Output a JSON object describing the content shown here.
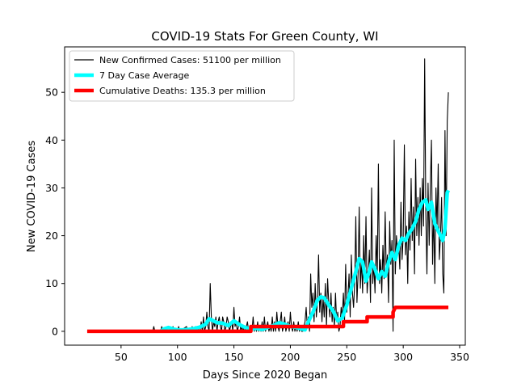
{
  "chart_data": {
    "type": "line",
    "title": "COVID-19 Stats For Green County, WI",
    "xlabel": "Days Since 2020 Began",
    "ylabel": "New COVID-19 Cases",
    "xlim": [
      0,
      355
    ],
    "ylim": [
      -2.9,
      59.5
    ],
    "xticks": [
      50,
      100,
      150,
      200,
      250,
      300,
      350
    ],
    "yticks": [
      0,
      10,
      20,
      30,
      40,
      50
    ],
    "grid": false,
    "legend_position": "top-left",
    "series": [
      {
        "name": "New Confirmed Cases: 51100 per million",
        "color": "#000000",
        "points": [
          [
            20,
            0
          ],
          [
            40,
            0
          ],
          [
            60,
            0
          ],
          [
            78,
            0
          ],
          [
            79,
            1
          ],
          [
            80,
            0
          ],
          [
            85,
            0
          ],
          [
            86,
            1
          ],
          [
            87,
            0
          ],
          [
            95,
            0
          ],
          [
            96,
            1
          ],
          [
            97,
            0
          ],
          [
            100,
            0
          ],
          [
            101,
            1
          ],
          [
            102,
            0
          ],
          [
            108,
            1
          ],
          [
            109,
            0
          ],
          [
            112,
            0
          ],
          [
            113,
            1
          ],
          [
            114,
            0
          ],
          [
            116,
            1
          ],
          [
            117,
            0
          ],
          [
            118,
            1
          ],
          [
            119,
            0
          ],
          [
            120,
            0
          ],
          [
            121,
            2
          ],
          [
            122,
            0
          ],
          [
            123,
            3
          ],
          [
            124,
            0
          ],
          [
            125,
            1
          ],
          [
            126,
            4
          ],
          [
            127,
            1
          ],
          [
            128,
            0
          ],
          [
            129,
            10
          ],
          [
            130,
            3
          ],
          [
            131,
            0
          ],
          [
            132,
            2
          ],
          [
            133,
            1
          ],
          [
            134,
            3
          ],
          [
            135,
            0
          ],
          [
            136,
            2
          ],
          [
            137,
            3
          ],
          [
            138,
            1
          ],
          [
            139,
            0
          ],
          [
            140,
            3
          ],
          [
            141,
            2
          ],
          [
            142,
            0
          ],
          [
            143,
            1
          ],
          [
            144,
            3
          ],
          [
            145,
            2
          ],
          [
            146,
            0
          ],
          [
            147,
            1
          ],
          [
            148,
            2
          ],
          [
            149,
            0
          ],
          [
            150,
            5
          ],
          [
            151,
            1
          ],
          [
            152,
            2
          ],
          [
            153,
            0
          ],
          [
            154,
            1
          ],
          [
            155,
            3
          ],
          [
            156,
            0
          ],
          [
            157,
            1
          ],
          [
            158,
            0
          ],
          [
            159,
            1
          ],
          [
            160,
            0
          ],
          [
            161,
            1
          ],
          [
            162,
            2
          ],
          [
            163,
            0
          ],
          [
            164,
            1
          ],
          [
            165,
            0
          ],
          [
            166,
            0
          ],
          [
            167,
            3
          ],
          [
            168,
            0
          ],
          [
            169,
            1
          ],
          [
            170,
            0
          ],
          [
            171,
            2
          ],
          [
            172,
            0
          ],
          [
            173,
            1
          ],
          [
            174,
            0
          ],
          [
            175,
            2
          ],
          [
            176,
            0
          ],
          [
            177,
            3
          ],
          [
            178,
            0
          ],
          [
            179,
            1
          ],
          [
            180,
            2
          ],
          [
            181,
            0
          ],
          [
            182,
            1
          ],
          [
            183,
            0
          ],
          [
            184,
            3
          ],
          [
            185,
            0
          ],
          [
            186,
            2
          ],
          [
            187,
            0
          ],
          [
            188,
            4
          ],
          [
            189,
            1
          ],
          [
            190,
            0
          ],
          [
            191,
            2
          ],
          [
            192,
            4
          ],
          [
            193,
            0
          ],
          [
            194,
            1
          ],
          [
            195,
            3
          ],
          [
            196,
            0
          ],
          [
            197,
            1
          ],
          [
            198,
            2
          ],
          [
            199,
            0
          ],
          [
            200,
            4
          ],
          [
            201,
            1
          ],
          [
            202,
            0
          ],
          [
            203,
            2
          ],
          [
            204,
            0
          ],
          [
            205,
            1
          ],
          [
            206,
            0
          ],
          [
            207,
            2
          ],
          [
            208,
            0
          ],
          [
            209,
            1
          ],
          [
            210,
            0
          ],
          [
            211,
            0
          ],
          [
            212,
            1
          ],
          [
            213,
            2
          ],
          [
            214,
            5
          ],
          [
            215,
            1
          ],
          [
            216,
            3
          ],
          [
            217,
            0
          ],
          [
            218,
            12
          ],
          [
            219,
            5
          ],
          [
            220,
            8
          ],
          [
            221,
            2
          ],
          [
            222,
            10
          ],
          [
            223,
            3
          ],
          [
            224,
            6
          ],
          [
            225,
            16
          ],
          [
            226,
            4
          ],
          [
            227,
            8
          ],
          [
            228,
            2
          ],
          [
            229,
            7
          ],
          [
            230,
            3
          ],
          [
            231,
            10
          ],
          [
            232,
            1
          ],
          [
            233,
            11
          ],
          [
            234,
            6
          ],
          [
            235,
            3
          ],
          [
            236,
            8
          ],
          [
            237,
            2
          ],
          [
            238,
            5
          ],
          [
            239,
            1
          ],
          [
            240,
            8
          ],
          [
            241,
            2
          ],
          [
            242,
            4
          ],
          [
            243,
            0
          ],
          [
            244,
            1
          ],
          [
            245,
            5
          ],
          [
            246,
            3
          ],
          [
            247,
            8
          ],
          [
            248,
            2
          ],
          [
            249,
            14
          ],
          [
            250,
            4
          ],
          [
            251,
            7
          ],
          [
            252,
            12
          ],
          [
            253,
            3
          ],
          [
            254,
            16
          ],
          [
            255,
            8
          ],
          [
            256,
            5
          ],
          [
            257,
            10
          ],
          [
            258,
            24
          ],
          [
            259,
            6
          ],
          [
            260,
            12
          ],
          [
            261,
            26
          ],
          [
            262,
            9
          ],
          [
            263,
            15
          ],
          [
            264,
            8
          ],
          [
            265,
            20
          ],
          [
            266,
            10
          ],
          [
            267,
            24
          ],
          [
            268,
            8
          ],
          [
            269,
            12
          ],
          [
            270,
            17
          ],
          [
            271,
            6
          ],
          [
            272,
            30
          ],
          [
            273,
            10
          ],
          [
            274,
            14
          ],
          [
            275,
            8
          ],
          [
            276,
            20
          ],
          [
            277,
            12
          ],
          [
            278,
            35
          ],
          [
            279,
            10
          ],
          [
            280,
            15
          ],
          [
            281,
            8
          ],
          [
            282,
            18
          ],
          [
            283,
            11
          ],
          [
            284,
            25
          ],
          [
            285,
            12
          ],
          [
            286,
            16
          ],
          [
            287,
            6
          ],
          [
            288,
            23
          ],
          [
            289,
            14
          ],
          [
            290,
            19
          ],
          [
            291,
            0
          ],
          [
            292,
            40
          ],
          [
            293,
            12
          ],
          [
            294,
            20
          ],
          [
            295,
            16
          ],
          [
            296,
            18
          ],
          [
            297,
            13
          ],
          [
            298,
            27
          ],
          [
            299,
            15
          ],
          [
            300,
            20
          ],
          [
            301,
            39
          ],
          [
            302,
            16
          ],
          [
            303,
            22
          ],
          [
            304,
            10
          ],
          [
            305,
            25
          ],
          [
            306,
            17
          ],
          [
            307,
            32
          ],
          [
            308,
            19
          ],
          [
            309,
            26
          ],
          [
            310,
            12
          ],
          [
            311,
            36
          ],
          [
            312,
            20
          ],
          [
            313,
            28
          ],
          [
            314,
            18
          ],
          [
            315,
            30
          ],
          [
            316,
            20
          ],
          [
            317,
            32
          ],
          [
            318,
            22
          ],
          [
            319,
            57
          ],
          [
            320,
            25
          ],
          [
            321,
            12
          ],
          [
            322,
            31
          ],
          [
            323,
            18
          ],
          [
            324,
            30
          ],
          [
            325,
            40
          ],
          [
            326,
            14
          ],
          [
            327,
            25
          ],
          [
            328,
            10
          ],
          [
            329,
            30
          ],
          [
            330,
            22
          ],
          [
            331,
            35
          ],
          [
            332,
            15
          ],
          [
            333,
            20
          ],
          [
            334,
            28
          ],
          [
            335,
            12
          ],
          [
            336,
            8
          ],
          [
            337,
            42
          ],
          [
            338,
            20
          ],
          [
            339,
            44
          ],
          [
            340,
            50
          ]
        ]
      },
      {
        "name": "7 Day Case Average",
        "color": "#00ffff",
        "points": [
          [
            85,
            0
          ],
          [
            88,
            0.5
          ],
          [
            92,
            0.8
          ],
          [
            96,
            0.5
          ],
          [
            100,
            0.3
          ],
          [
            105,
            0.3
          ],
          [
            110,
            0.4
          ],
          [
            115,
            0.6
          ],
          [
            120,
            0.9
          ],
          [
            125,
            1.5
          ],
          [
            128,
            2.6
          ],
          [
            131,
            2.3
          ],
          [
            135,
            1.8
          ],
          [
            140,
            1.7
          ],
          [
            145,
            1.2
          ],
          [
            150,
            2.2
          ],
          [
            155,
            1.4
          ],
          [
            160,
            0.8
          ],
          [
            165,
            0.5
          ],
          [
            170,
            0.6
          ],
          [
            175,
            0.4
          ],
          [
            180,
            0.8
          ],
          [
            185,
            1.2
          ],
          [
            190,
            1.8
          ],
          [
            195,
            1.5
          ],
          [
            200,
            1.0
          ],
          [
            205,
            0.8
          ],
          [
            210,
            0.5
          ],
          [
            213,
            0.3
          ],
          [
            216,
            2.0
          ],
          [
            220,
            4.0
          ],
          [
            224,
            6.5
          ],
          [
            227,
            7.2
          ],
          [
            230,
            7.0
          ],
          [
            234,
            5.5
          ],
          [
            238,
            4.2
          ],
          [
            242,
            2.2
          ],
          [
            246,
            2.8
          ],
          [
            250,
            5.5
          ],
          [
            254,
            9.0
          ],
          [
            258,
            12.5
          ],
          [
            261,
            15.2
          ],
          [
            264,
            14.5
          ],
          [
            267,
            10.5
          ],
          [
            270,
            12.5
          ],
          [
            272,
            14.5
          ],
          [
            275,
            13.0
          ],
          [
            278,
            11.0
          ],
          [
            281,
            12.5
          ],
          [
            284,
            11.5
          ],
          [
            287,
            14.5
          ],
          [
            290,
            16.5
          ],
          [
            293,
            15.0
          ],
          [
            296,
            18.0
          ],
          [
            299,
            19.5
          ],
          [
            302,
            19.0
          ],
          [
            305,
            20.5
          ],
          [
            308,
            21.5
          ],
          [
            311,
            23.0
          ],
          [
            314,
            25.5
          ],
          [
            317,
            27.0
          ],
          [
            320,
            27.5
          ],
          [
            322,
            25.5
          ],
          [
            325,
            27.0
          ],
          [
            328,
            22.5
          ],
          [
            331,
            21.0
          ],
          [
            333,
            20.0
          ],
          [
            335,
            19.0
          ],
          [
            337,
            21.5
          ],
          [
            339,
            29.0
          ],
          [
            340,
            29.5
          ]
        ]
      },
      {
        "name": "Cumulative Deaths: 135.3 per million",
        "color": "#ff0000",
        "points": [
          [
            20,
            0
          ],
          [
            165,
            0
          ],
          [
            165,
            1
          ],
          [
            247,
            1
          ],
          [
            247,
            2
          ],
          [
            268,
            2
          ],
          [
            268,
            3
          ],
          [
            291,
            3
          ],
          [
            291,
            4
          ],
          [
            293,
            5
          ],
          [
            340,
            5
          ]
        ]
      }
    ]
  }
}
